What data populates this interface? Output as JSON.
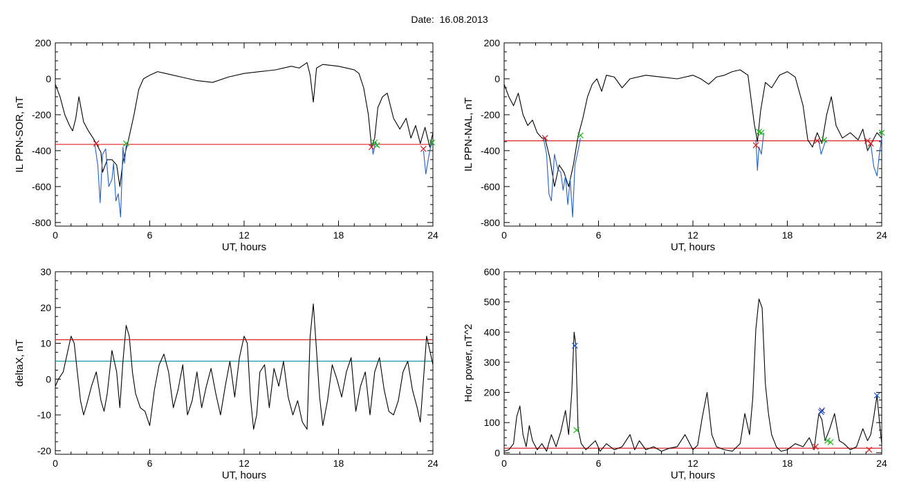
{
  "header": {
    "title": "Date:  16.08.2013"
  },
  "chart_data": [
    {
      "id": "p1",
      "type": "line",
      "xlabel": "UT, hours",
      "ylabel": "IL PPN-SOR, nT",
      "xlim": [
        0,
        24
      ],
      "ylim": [
        -820,
        200
      ],
      "xticks": [
        0,
        6,
        12,
        18,
        24
      ],
      "yticks": [
        200,
        0,
        -200,
        -400,
        -600,
        -800
      ],
      "threshold_lines": [
        {
          "y": -365,
          "color": "#dd2222"
        }
      ],
      "series": [
        {
          "color": "#000000",
          "x": [
            0,
            0.3,
            0.6,
            0.9,
            1.1,
            1.3,
            1.5,
            1.8,
            2.1,
            2.4,
            2.6,
            2.9,
            3.0,
            3.3,
            3.6,
            3.9,
            4.1,
            4.3,
            4.6,
            4.8,
            5.0,
            5.3,
            5.6,
            6.0,
            6.5,
            7.0,
            8.0,
            9.0,
            10.0,
            11.0,
            12.0,
            13.0,
            14.0,
            15.0,
            15.5,
            16.0,
            16.2,
            16.4,
            16.6,
            17.0,
            18.0,
            19.0,
            19.3,
            19.6,
            19.9,
            20.1,
            20.3,
            20.5,
            20.8,
            21.1,
            21.5,
            21.9,
            22.3,
            22.6,
            22.9,
            23.2,
            23.5,
            23.8,
            24.0
          ],
          "y": [
            -30,
            -100,
            -200,
            -260,
            -290,
            -220,
            -100,
            -240,
            -290,
            -330,
            -360,
            -410,
            -520,
            -450,
            -450,
            -480,
            -600,
            -460,
            -360,
            -280,
            -200,
            -60,
            0,
            20,
            40,
            30,
            10,
            -10,
            -20,
            10,
            30,
            40,
            50,
            70,
            60,
            90,
            20,
            -130,
            60,
            80,
            70,
            50,
            30,
            -50,
            -200,
            -380,
            -330,
            -160,
            -100,
            -80,
            -220,
            -280,
            -220,
            -330,
            -260,
            -360,
            -270,
            -380,
            -300
          ]
        },
        {
          "color": "#1f5fc8",
          "x": [
            2.5,
            2.7,
            2.85,
            3.0,
            3.2,
            3.4,
            3.6,
            3.7,
            3.85,
            4.0,
            4.15,
            4.3,
            4.4,
            4.5
          ],
          "y": [
            -360,
            -480,
            -690,
            -420,
            -390,
            -600,
            -560,
            -470,
            -680,
            -640,
            -770,
            -380,
            -470,
            -370
          ]
        },
        {
          "color": "#1f5fc8",
          "x": [
            20.1,
            20.2,
            20.35,
            20.5
          ],
          "y": [
            -360,
            -420,
            -350,
            -380
          ]
        },
        {
          "color": "#1f5fc8",
          "x": [
            23.4,
            23.55,
            23.7,
            23.85,
            24.0
          ],
          "y": [
            -400,
            -530,
            -450,
            -380,
            -350
          ]
        }
      ],
      "markers": [
        {
          "x": 2.6,
          "y": -360,
          "color": "#dd2222"
        },
        {
          "x": 4.5,
          "y": -360,
          "color": "#22bb22"
        },
        {
          "x": 20.1,
          "y": -380,
          "color": "#dd2222"
        },
        {
          "x": 20.3,
          "y": -355,
          "color": "#22bb22"
        },
        {
          "x": 20.45,
          "y": -370,
          "color": "#22bb22"
        },
        {
          "x": 23.4,
          "y": -390,
          "color": "#dd2222"
        },
        {
          "x": 23.95,
          "y": -355,
          "color": "#22bb22"
        }
      ]
    },
    {
      "id": "p2",
      "type": "line",
      "xlabel": "UT, hours",
      "ylabel": "IL PPN-NAL, nT",
      "xlim": [
        0,
        24
      ],
      "ylim": [
        -820,
        200
      ],
      "xticks": [
        0,
        6,
        12,
        18,
        24
      ],
      "yticks": [
        200,
        0,
        -200,
        -400,
        -600,
        -800
      ],
      "threshold_lines": [
        {
          "y": -345,
          "color": "#dd2222"
        }
      ],
      "series": [
        {
          "color": "#000000",
          "x": [
            0,
            0.3,
            0.6,
            0.9,
            1.2,
            1.5,
            1.8,
            2.1,
            2.4,
            2.6,
            2.9,
            3.2,
            3.5,
            3.8,
            4.1,
            4.4,
            4.7,
            5.0,
            5.3,
            5.6,
            5.9,
            6.2,
            6.5,
            7.0,
            7.5,
            8.0,
            9.0,
            10.0,
            11.0,
            12.0,
            12.5,
            13.0,
            13.5,
            14.0,
            14.5,
            15.0,
            15.5,
            15.9,
            16.1,
            16.3,
            16.6,
            17.0,
            17.5,
            18.0,
            18.5,
            19.0,
            19.3,
            19.6,
            19.9,
            20.2,
            20.5,
            20.8,
            21.1,
            21.5,
            22.0,
            22.5,
            22.8,
            23.1,
            23.4,
            23.7,
            24.0
          ],
          "y": [
            -30,
            -100,
            -150,
            -80,
            -200,
            -260,
            -230,
            -300,
            -330,
            -330,
            -440,
            -600,
            -480,
            -520,
            -600,
            -480,
            -320,
            -220,
            -100,
            -30,
            0,
            -70,
            20,
            10,
            -50,
            0,
            20,
            10,
            0,
            20,
            0,
            -30,
            10,
            20,
            40,
            50,
            20,
            -250,
            -350,
            -180,
            -20,
            -50,
            20,
            40,
            10,
            -150,
            -340,
            -380,
            -300,
            -360,
            -200,
            -100,
            -260,
            -330,
            -300,
            -340,
            -280,
            -400,
            -350,
            -300,
            -330
          ]
        },
        {
          "color": "#1f5fc8",
          "x": [
            2.5,
            2.7,
            2.85,
            3.0,
            3.2,
            3.4,
            3.6,
            3.75,
            3.9,
            4.05,
            4.2,
            4.35,
            4.5,
            4.7,
            4.85
          ],
          "y": [
            -330,
            -420,
            -640,
            -680,
            -420,
            -500,
            -520,
            -620,
            -540,
            -700,
            -560,
            -770,
            -480,
            -400,
            -330
          ]
        },
        {
          "color": "#1f5fc8",
          "x": [
            16.0,
            16.1,
            16.2,
            16.35,
            16.5
          ],
          "y": [
            -340,
            -510,
            -380,
            -420,
            -300
          ]
        },
        {
          "color": "#1f5fc8",
          "x": [
            20.0,
            20.15,
            20.3,
            20.45
          ],
          "y": [
            -345,
            -420,
            -380,
            -340
          ]
        },
        {
          "color": "#1f5fc8",
          "x": [
            23.3,
            23.5,
            23.7,
            23.85,
            24.0
          ],
          "y": [
            -360,
            -490,
            -540,
            -420,
            -330
          ]
        }
      ],
      "markers": [
        {
          "x": 2.6,
          "y": -330,
          "color": "#dd2222"
        },
        {
          "x": 4.85,
          "y": -315,
          "color": "#22bb22"
        },
        {
          "x": 16.0,
          "y": -370,
          "color": "#dd2222"
        },
        {
          "x": 16.2,
          "y": -295,
          "color": "#22bb22"
        },
        {
          "x": 16.35,
          "y": -300,
          "color": "#22bb22"
        },
        {
          "x": 19.9,
          "y": -345,
          "color": "#dd2222"
        },
        {
          "x": 20.35,
          "y": -340,
          "color": "#22bb22"
        },
        {
          "x": 23.1,
          "y": -345,
          "color": "#dd2222"
        },
        {
          "x": 23.3,
          "y": -360,
          "color": "#dd2222"
        },
        {
          "x": 24.0,
          "y": -300,
          "color": "#22bb22"
        }
      ]
    },
    {
      "id": "p3",
      "type": "line",
      "xlabel": "UT, hours",
      "ylabel": "deltaX, nT",
      "xlim": [
        0,
        24
      ],
      "ylim": [
        -21,
        30
      ],
      "xticks": [
        0,
        6,
        12,
        18,
        24
      ],
      "yticks": [
        30,
        20,
        10,
        0,
        -10,
        -20
      ],
      "threshold_lines": [
        {
          "y": 11,
          "color": "#dd2222"
        },
        {
          "y": 5,
          "color": "#1a9aa8"
        }
      ],
      "series": [
        {
          "color": "#000000",
          "x": [
            0,
            0.2,
            0.5,
            0.8,
            1.0,
            1.2,
            1.4,
            1.6,
            1.8,
            2.0,
            2.3,
            2.6,
            2.9,
            3.1,
            3.3,
            3.6,
            3.9,
            4.1,
            4.3,
            4.5,
            4.7,
            4.9,
            5.1,
            5.4,
            5.7,
            6.0,
            6.3,
            6.6,
            6.9,
            7.2,
            7.5,
            7.8,
            8.1,
            8.4,
            8.7,
            9.0,
            9.3,
            9.6,
            9.9,
            10.2,
            10.5,
            10.8,
            11.1,
            11.4,
            11.7,
            12.0,
            12.2,
            12.4,
            12.6,
            12.8,
            13.0,
            13.3,
            13.6,
            13.9,
            14.2,
            14.5,
            14.8,
            15.1,
            15.4,
            15.7,
            16.0,
            16.2,
            16.4,
            16.6,
            16.8,
            17.0,
            17.3,
            17.6,
            17.9,
            18.2,
            18.5,
            18.8,
            19.1,
            19.4,
            19.7,
            20.0,
            20.3,
            20.6,
            20.9,
            21.2,
            21.5,
            21.8,
            22.1,
            22.4,
            22.7,
            23.0,
            23.2,
            23.4,
            23.6,
            23.8,
            24.0
          ],
          "y": [
            -2,
            0,
            2,
            8,
            12,
            10,
            2,
            -6,
            -10,
            -7,
            -2,
            2,
            -6,
            -9,
            -4,
            8,
            2,
            -8,
            5,
            15,
            12,
            2,
            -4,
            -8,
            -9,
            -13,
            -3,
            4,
            7,
            2,
            -8,
            -3,
            4,
            -10,
            -6,
            2,
            -8,
            -2,
            3,
            -4,
            -10,
            -2,
            5,
            -5,
            6,
            12,
            10,
            -5,
            -14,
            -10,
            2,
            4,
            -8,
            3,
            -2,
            5,
            -5,
            -10,
            -6,
            -12,
            -14,
            12,
            21,
            8,
            -5,
            -13,
            -6,
            4,
            0,
            -5,
            2,
            6,
            -9,
            -2,
            2,
            -10,
            2,
            6,
            -3,
            -9,
            -10,
            -6,
            2,
            5,
            -3,
            -8,
            -12,
            0,
            12,
            8,
            4
          ]
        }
      ],
      "markers": []
    },
    {
      "id": "p4",
      "type": "line",
      "xlabel": "UT, hours",
      "ylabel": "Hor. power, nT^2",
      "xlim": [
        0,
        24
      ],
      "ylim": [
        -5,
        600
      ],
      "xticks": [
        0,
        6,
        12,
        18,
        24
      ],
      "yticks": [
        600,
        500,
        400,
        300,
        200,
        100,
        0
      ],
      "threshold_lines": [
        {
          "y": 15,
          "color": "#dd2222"
        }
      ],
      "series": [
        {
          "color": "#000000",
          "x": [
            0,
            0.3,
            0.6,
            0.8,
            1.0,
            1.2,
            1.4,
            1.6,
            1.8,
            2.1,
            2.4,
            2.7,
            3.0,
            3.3,
            3.6,
            3.9,
            4.1,
            4.3,
            4.45,
            4.55,
            4.7,
            4.9,
            5.2,
            5.5,
            5.8,
            6.1,
            6.5,
            7.0,
            7.5,
            8.0,
            8.3,
            8.6,
            9.0,
            9.5,
            10.0,
            10.5,
            11.0,
            11.5,
            12.0,
            12.3,
            12.6,
            12.9,
            13.2,
            13.5,
            14.0,
            14.5,
            15.0,
            15.3,
            15.6,
            15.8,
            16.0,
            16.2,
            16.4,
            16.6,
            16.8,
            17.0,
            17.3,
            17.6,
            18.0,
            18.5,
            19.0,
            19.4,
            19.7,
            20.0,
            20.2,
            20.4,
            20.7,
            21.0,
            21.3,
            21.6,
            22.0,
            22.4,
            22.8,
            23.1,
            23.3,
            23.5,
            23.7,
            23.9,
            24.0
          ],
          "y": [
            5,
            10,
            30,
            120,
            155,
            60,
            20,
            90,
            40,
            10,
            30,
            5,
            60,
            20,
            70,
            140,
            60,
            200,
            400,
            360,
            80,
            30,
            10,
            25,
            40,
            5,
            30,
            10,
            20,
            60,
            10,
            40,
            10,
            20,
            5,
            15,
            20,
            60,
            10,
            25,
            120,
            200,
            60,
            20,
            10,
            5,
            30,
            130,
            60,
            180,
            410,
            510,
            480,
            230,
            130,
            60,
            20,
            5,
            10,
            30,
            20,
            50,
            10,
            130,
            110,
            40,
            80,
            130,
            40,
            30,
            10,
            20,
            80,
            40,
            60,
            120,
            190,
            80,
            30
          ]
        }
      ],
      "markers": [
        {
          "x": 4.5,
          "y": 355,
          "color": "#1f5fc8"
        },
        {
          "x": 4.6,
          "y": 75,
          "color": "#22bb22"
        },
        {
          "x": 19.8,
          "y": 20,
          "color": "#dd2222"
        },
        {
          "x": 20.15,
          "y": 135,
          "color": "#1f5fc8"
        },
        {
          "x": 20.2,
          "y": 140,
          "color": "#3333aa"
        },
        {
          "x": 20.55,
          "y": 40,
          "color": "#22bb22"
        },
        {
          "x": 20.75,
          "y": 35,
          "color": "#22bb22"
        },
        {
          "x": 23.2,
          "y": 10,
          "color": "#dd2222"
        },
        {
          "x": 23.7,
          "y": 190,
          "color": "#1f5fc8"
        }
      ]
    }
  ]
}
